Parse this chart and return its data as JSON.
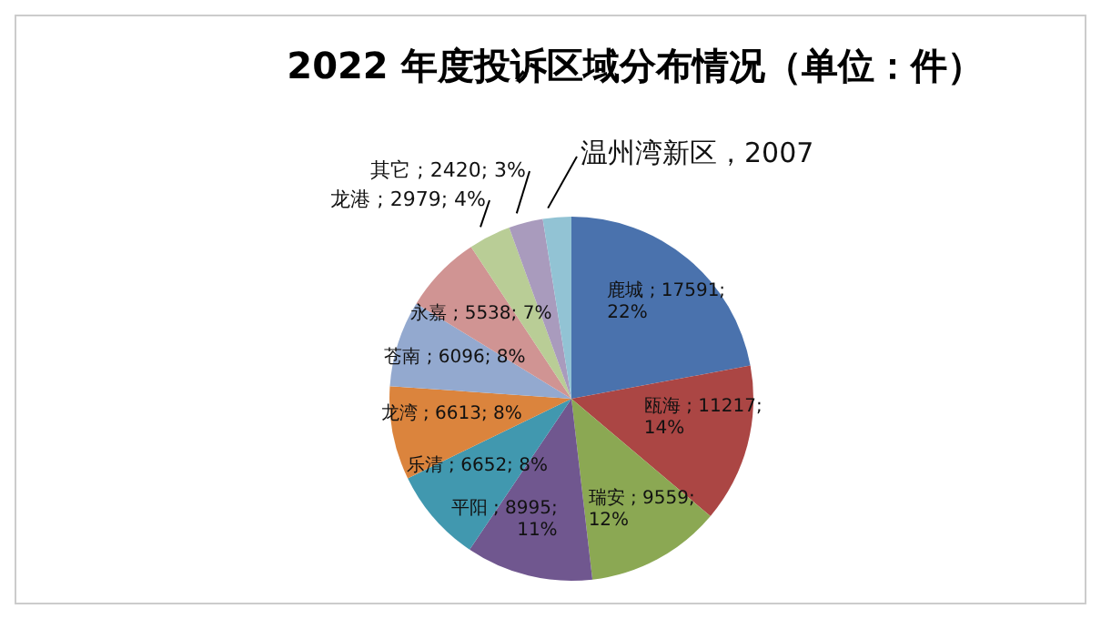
{
  "chart_data": {
    "type": "pie",
    "title": "2022 年度投诉区域分布情况（单位：件）",
    "categories": [
      "鹿城",
      "瓯海",
      "瑞安",
      "平阳",
      "乐清",
      "龙湾",
      "苍南",
      "永嘉",
      "龙港",
      "其它",
      "温州湾新区"
    ],
    "values": [
      17591,
      11217,
      9559,
      8995,
      6652,
      6613,
      6096,
      5538,
      2979,
      2420,
      2007
    ],
    "colors": [
      "#4a72ad",
      "#ab4644",
      "#8ba853",
      "#70578f",
      "#4198af",
      "#db843d",
      "#93a9cf",
      "#d09493",
      "#b9cd96",
      "#a99bbd",
      "#92c3d4"
    ],
    "value_labels": [
      "17591; 22%",
      "11217; 14%",
      "9559; 12%",
      "8995; 11%",
      "6652; 8%",
      "6613; 8%",
      "6096; 8%",
      "5538; 7%",
      "2979; 4%",
      "2420; 3%",
      "2007"
    ],
    "legend": false
  }
}
